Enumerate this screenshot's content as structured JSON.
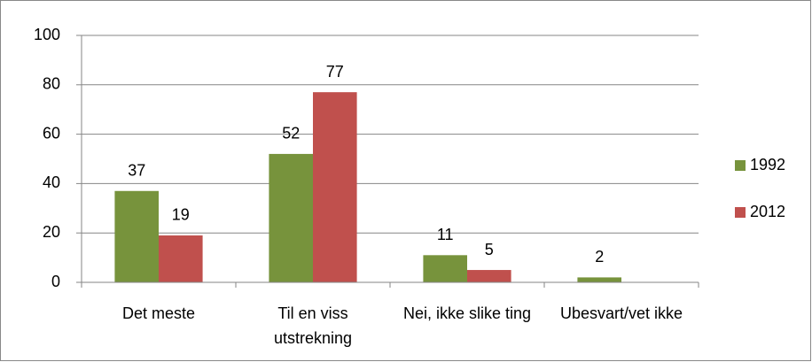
{
  "chart_data": {
    "type": "bar",
    "categories": [
      "Det meste",
      "Til en viss utstrekning",
      "Nei, ikke slike ting",
      "Ubesvart/vet ikke"
    ],
    "series": [
      {
        "name": "1992",
        "color": "#77933c",
        "values": [
          37,
          52,
          11,
          2
        ]
      },
      {
        "name": "2012",
        "color": "#c0504d",
        "values": [
          19,
          77,
          5,
          null
        ]
      }
    ],
    "ylim": [
      0,
      100
    ],
    "yticks": [
      0,
      20,
      40,
      60,
      80,
      100
    ],
    "grid": true,
    "legend": "right"
  }
}
